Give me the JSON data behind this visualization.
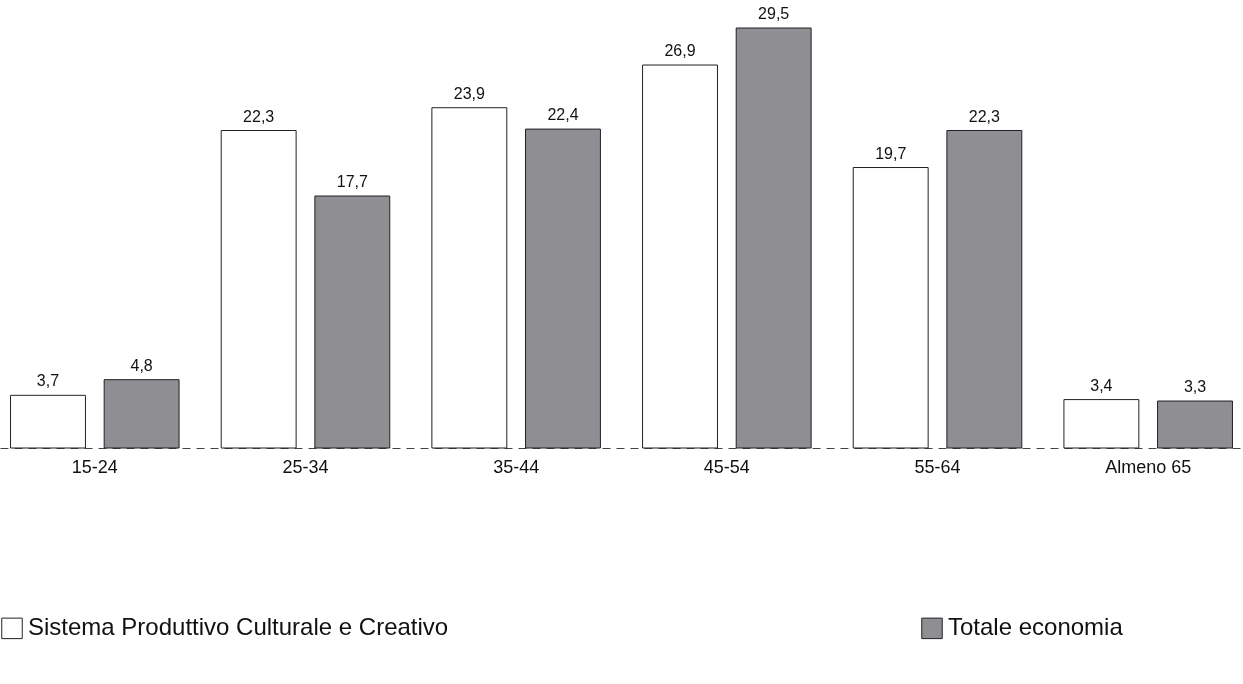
{
  "chart_data": {
    "type": "bar",
    "categories": [
      "15-24",
      "25-34",
      "35-44",
      "45-54",
      "55-64",
      "Almeno 65"
    ],
    "series": [
      {
        "name": "Sistema Produttivo Culturale e Creativo",
        "color": "#ffffff",
        "values": [
          3.7,
          22.3,
          23.9,
          26.9,
          19.7,
          3.4
        ],
        "value_labels": [
          "3,7",
          "22,3",
          "23,9",
          "26,9",
          "19,7",
          "3,4"
        ]
      },
      {
        "name": "Totale economia",
        "color": "#8e8e93",
        "values": [
          4.8,
          17.7,
          22.4,
          29.5,
          22.3,
          3.3
        ],
        "value_labels": [
          "4,8",
          "17,7",
          "22,4",
          "29,5",
          "22,3",
          "3,3"
        ]
      }
    ],
    "legend": "bottom"
  }
}
